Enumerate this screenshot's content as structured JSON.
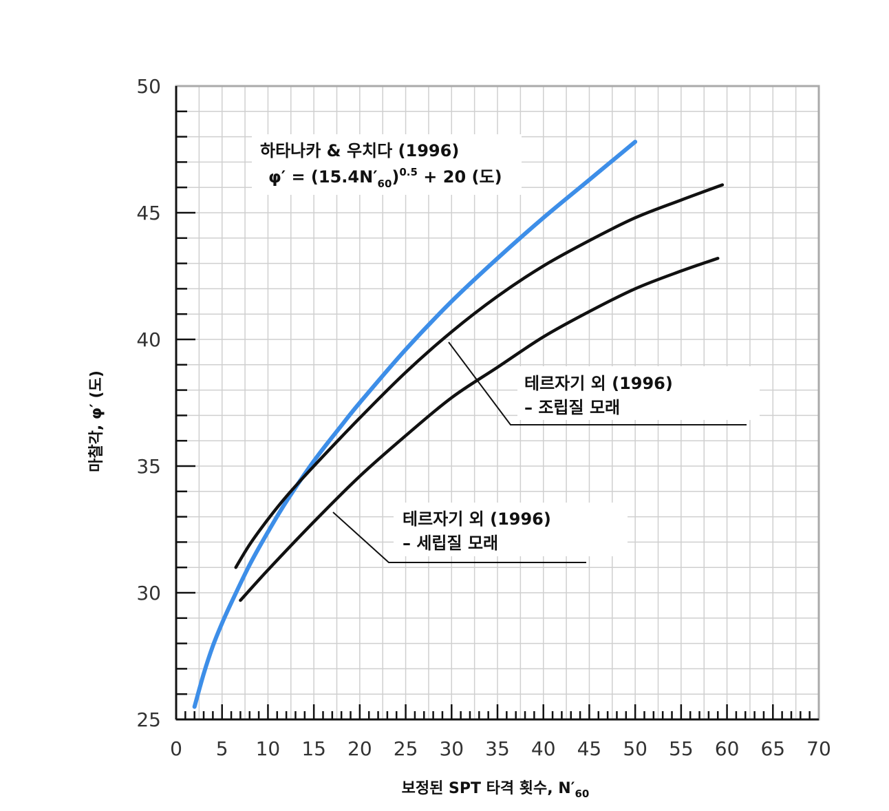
{
  "chart_data": {
    "type": "line",
    "xlabel": "보정된 SPT 타격 횟수, N′₆₀",
    "ylabel": "마찰각, φ′ (도)",
    "xlim": [
      0,
      70
    ],
    "ylim": [
      25,
      50
    ],
    "x_ticks": [
      "0",
      "5",
      "10",
      "15",
      "20",
      "25",
      "30",
      "35",
      "40",
      "45",
      "50",
      "55",
      "60",
      "65",
      "70"
    ],
    "y_ticks": [
      "25",
      "30",
      "35",
      "40",
      "45",
      "50"
    ],
    "grid": true,
    "series": [
      {
        "name": "하타나카 & 우치다 (1996)",
        "color": "#3d8ee8",
        "x": [
          2,
          3,
          4,
          5,
          6,
          8,
          10,
          12,
          15,
          18,
          20,
          25,
          30,
          35,
          40,
          45,
          50
        ],
        "y": [
          25.5,
          26.8,
          27.9,
          28.8,
          29.6,
          31.1,
          32.4,
          33.6,
          35.2,
          36.6,
          37.5,
          39.6,
          41.5,
          43.2,
          44.8,
          46.3,
          47.8
        ]
      },
      {
        "name": "테르자기 외 (1996) – 조립질 모래",
        "color": "#111111",
        "x": [
          6.5,
          8,
          10,
          12,
          15,
          20,
          25,
          30,
          35,
          40,
          45,
          50,
          55,
          59.5
        ],
        "y": [
          31.0,
          31.9,
          32.9,
          33.8,
          35.0,
          36.9,
          38.7,
          40.3,
          41.7,
          42.9,
          43.9,
          44.8,
          45.5,
          46.1
        ]
      },
      {
        "name": "테르자기 외 (1996) – 세립질 모래",
        "color": "#111111",
        "x": [
          7,
          10,
          15,
          20,
          25,
          30,
          35,
          40,
          45,
          50,
          55,
          59
        ],
        "y": [
          29.7,
          30.9,
          32.8,
          34.6,
          36.2,
          37.7,
          38.9,
          40.1,
          41.1,
          42.0,
          42.7,
          43.2
        ]
      }
    ]
  },
  "annotations": {
    "hatanaka": {
      "line1": "하타나카 & 우치다 (1996)",
      "formula_a": "φ′ = (15.4N′",
      "formula_sub": "60",
      "formula_b": ")",
      "formula_sup": "0.5",
      "formula_c": " + 20 (도)"
    },
    "coarse": {
      "line1": "테르자기 외 (1996)",
      "line2": "– 조립질 모래"
    },
    "fine": {
      "line1": "테르자기 외 (1996)",
      "line2": "– 세립질 모래"
    }
  },
  "axes": {
    "ylabel_main": "마찰각, φ′ (도)",
    "xlabel_main": "보정된 SPT 타격 횟수, N′",
    "xlabel_sub": "60"
  }
}
